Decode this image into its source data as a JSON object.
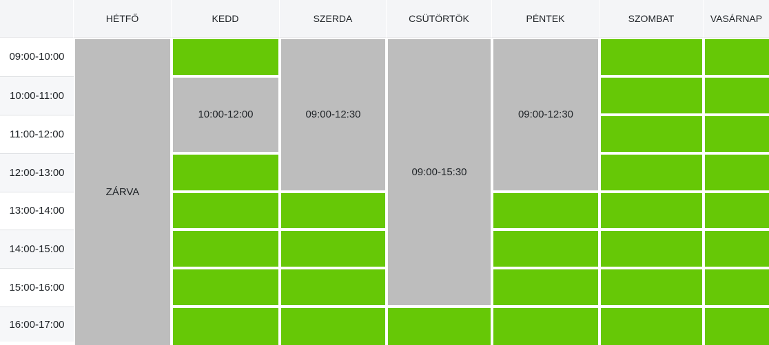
{
  "widget": "weekly-availability-schedule",
  "days": [
    "HÉTFŐ",
    "KEDD",
    "SZERDA",
    "CSÜTÖRTÖK",
    "PÉNTEK",
    "SZOMBAT",
    "VASÁRNAP"
  ],
  "times": [
    "09:00-10:00",
    "10:00-11:00",
    "11:00-12:00",
    "12:00-13:00",
    "13:00-14:00",
    "14:00-15:00",
    "15:00-16:00",
    "16:00-17:00"
  ],
  "blocks": {
    "hetfo": {
      "state": "closed",
      "label": "ZÁRVA"
    },
    "kedd": {
      "state": "busy",
      "label": "10:00-12:00"
    },
    "szerda": {
      "state": "busy",
      "label": "09:00-12:30"
    },
    "csutortok": {
      "state": "busy",
      "label": "09:00-15:30"
    },
    "pentek": {
      "state": "busy",
      "label": "09:00-12:30"
    }
  },
  "day_states": {
    "hetfo": [
      "closed",
      "closed",
      "closed",
      "closed",
      "closed",
      "closed",
      "closed",
      "closed"
    ],
    "kedd": [
      "free",
      "busy",
      "busy",
      "free",
      "free",
      "free",
      "free",
      "free"
    ],
    "szerda": [
      "busy",
      "busy",
      "busy",
      "busy",
      "free",
      "free",
      "free",
      "free"
    ],
    "csutortok": [
      "busy",
      "busy",
      "busy",
      "busy",
      "busy",
      "busy",
      "busy",
      "free"
    ],
    "pentek": [
      "busy",
      "busy",
      "busy",
      "busy",
      "free",
      "free",
      "free",
      "free"
    ],
    "szombat": [
      "free",
      "free",
      "free",
      "free",
      "free",
      "free",
      "free",
      "free"
    ],
    "vasarnap": [
      "free",
      "free",
      "free",
      "free",
      "free",
      "free",
      "free",
      "free"
    ]
  },
  "colors": {
    "free_slot": "#66c806",
    "busy_slot": "#bdbdbd",
    "header_bg": "#f4f5f7",
    "row_stripe": "#f6f7f9",
    "text": "#212529"
  }
}
